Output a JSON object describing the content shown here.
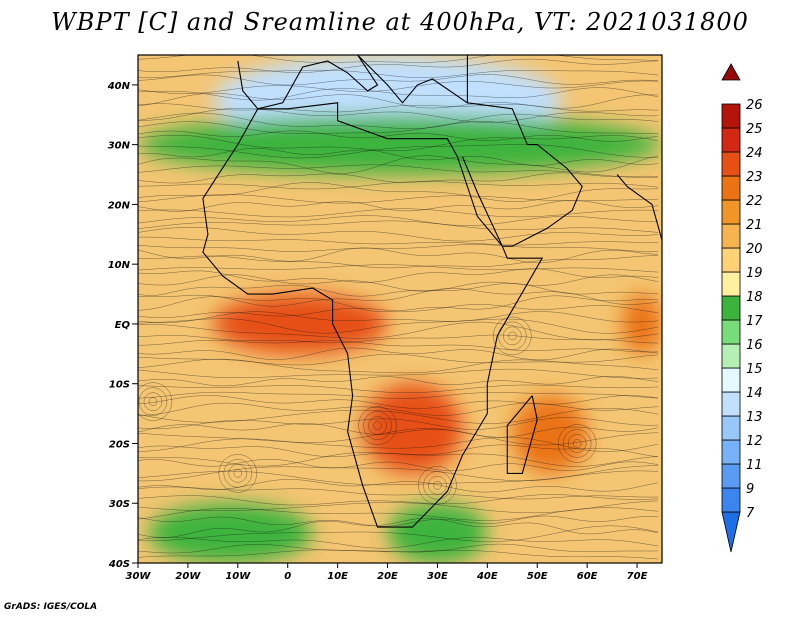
{
  "title": "WBPT [C] and Sreamline at 400hPa, VT: 2021031800",
  "credit": "GrADS: IGES/COLA",
  "map": {
    "lat_range": [
      -40,
      45
    ],
    "lon_range": [
      -30,
      75
    ],
    "lat_ticks": [
      {
        "value": 40,
        "label": "40N"
      },
      {
        "value": 30,
        "label": "30N"
      },
      {
        "value": 20,
        "label": "20N"
      },
      {
        "value": 10,
        "label": "10N"
      },
      {
        "value": 0,
        "label": "EQ"
      },
      {
        "value": -10,
        "label": "10S"
      },
      {
        "value": -20,
        "label": "20S"
      },
      {
        "value": -30,
        "label": "30S"
      },
      {
        "value": -40,
        "label": "40S"
      }
    ],
    "lon_ticks": [
      {
        "value": -30,
        "label": "30W"
      },
      {
        "value": -20,
        "label": "20W"
      },
      {
        "value": -10,
        "label": "10W"
      },
      {
        "value": 0,
        "label": "0"
      },
      {
        "value": 10,
        "label": "10E"
      },
      {
        "value": 20,
        "label": "20E"
      },
      {
        "value": 30,
        "label": "30E"
      },
      {
        "value": 40,
        "label": "40E"
      },
      {
        "value": 50,
        "label": "50E"
      },
      {
        "value": 60,
        "label": "60E"
      },
      {
        "value": 70,
        "label": "70E"
      }
    ],
    "shading_regions": [
      {
        "name": "north-cold",
        "lat": [
          30,
          45
        ],
        "lon": [
          -15,
          55
        ],
        "wbpt": 13
      },
      {
        "name": "north-green",
        "lat": [
          25,
          35
        ],
        "lon": [
          -30,
          75
        ],
        "wbpt": 17
      },
      {
        "name": "equatorial-west-warm",
        "lat": [
          -5,
          5
        ],
        "lon": [
          -15,
          20
        ],
        "wbpt": 23
      },
      {
        "name": "southern-africa-warm",
        "lat": [
          -25,
          -10
        ],
        "lon": [
          15,
          35
        ],
        "wbpt": 23
      },
      {
        "name": "madagascar-warm",
        "lat": [
          -25,
          -12
        ],
        "lon": [
          45,
          60
        ],
        "wbpt": 22
      },
      {
        "name": "east-edge-warm",
        "lat": [
          -5,
          5
        ],
        "lon": [
          67,
          75
        ],
        "wbpt": 22
      },
      {
        "name": "south-west-green",
        "lat": [
          -40,
          -30
        ],
        "lon": [
          -28,
          5
        ],
        "wbpt": 17
      },
      {
        "name": "south-mid-green",
        "lat": [
          -40,
          -30
        ],
        "lon": [
          20,
          40
        ],
        "wbpt": 17
      }
    ]
  },
  "colorbar": {
    "levels": [
      "7",
      "9",
      "11",
      "12",
      "13",
      "14",
      "15",
      "16",
      "17",
      "18",
      "19",
      "20",
      "21",
      "22",
      "23",
      "24",
      "25",
      "26"
    ],
    "colors": [
      "#1e6ee6",
      "#3a86ee",
      "#5a9cf2",
      "#78b2f6",
      "#98c8fa",
      "#c0e0fe",
      "#e6f8ff",
      "#b4f0b4",
      "#78dc78",
      "#3cb43c",
      "#fff0a0",
      "#ffd278",
      "#f5b450",
      "#f09628",
      "#eb7314",
      "#e65014",
      "#d22814",
      "#b4140a",
      "#960a0a"
    ]
  }
}
